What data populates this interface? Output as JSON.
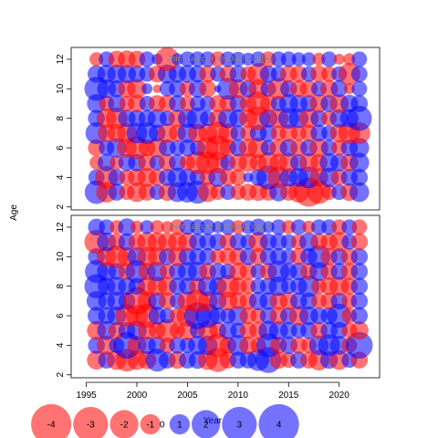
{
  "chart_data": [
    {
      "type": "scatter",
      "encoding": "bubble",
      "title": "Joint sample residuals log(N)",
      "xlabel": "Year",
      "ylabel": "Age",
      "xlim": [
        1993.5,
        2024
      ],
      "ylim": [
        1.8,
        12.8
      ],
      "xticks": [
        1995,
        2000,
        2005,
        2010,
        2015,
        2020
      ],
      "yticks": [
        2,
        4,
        6,
        8,
        10,
        12
      ],
      "colors": {
        "negative": "#ff0000",
        "positive": "#0000ff",
        "alpha": 0.55
      },
      "ages": [
        3,
        4,
        5,
        6,
        7,
        8,
        9,
        10,
        11,
        12
      ],
      "years": [
        1996,
        1997,
        1998,
        1999,
        2000,
        2001,
        2002,
        2003,
        2004,
        2005,
        2006,
        2007,
        2008,
        2009,
        2010,
        2011,
        2012,
        2013,
        2014,
        2015,
        2016,
        2017,
        2018,
        2019,
        2020,
        2021,
        2022
      ],
      "residuals_by_age": {
        "3": [
          2.3,
          -1.8,
          1.2,
          -1.0,
          -1.6,
          -1.2,
          1.0,
          -1.3,
          1.6,
          1.8,
          2.2,
          -1.6,
          -1.0,
          1.0,
          -1.0,
          -1.2,
          -1.3,
          -1.2,
          1.4,
          -1.2,
          -1.8,
          -3.5,
          -2.3,
          -1.0,
          1.0,
          -1.3,
          1.6
        ],
        "4": [
          1.1,
          -2.2,
          1.2,
          -1.0,
          -1.3,
          -1.5,
          -1.2,
          1.2,
          1.6,
          1.3,
          1.0,
          -1.0,
          1.5,
          -1.2,
          -1.1,
          0.4,
          1.2,
          2.4,
          -2.0,
          1.4,
          1.5,
          2.0,
          -1.4,
          1.6,
          -1.1,
          1.2,
          1.2
        ],
        "5": [
          -0.8,
          1.3,
          -0.8,
          1.2,
          1.3,
          -1.3,
          1.0,
          -1.2,
          1.2,
          -1.0,
          -2.2,
          -2.2,
          -2.0,
          1.0,
          -1.3,
          -1.5,
          -1.2,
          -1.8,
          -1.3,
          -1.6,
          1.2,
          -1.5,
          -1.2,
          1.5,
          1.3,
          -1.3,
          1.6
        ],
        "6": [
          -1.2,
          1.0,
          1.6,
          -1.6,
          -2.2,
          -1.2,
          -1.6,
          1.2,
          1.0,
          1.2,
          1.0,
          -2.0,
          -2.6,
          -1.2,
          1.2,
          -1.4,
          -1.8,
          1.0,
          -1.3,
          1.3,
          -1.2,
          1.2,
          -1.5,
          1.1,
          -1.0,
          1.2,
          1.6
        ],
        "7": [
          2.0,
          -1.3,
          -1.4,
          -1.6,
          1.8,
          2.0,
          1.2,
          -1.6,
          -1.2,
          1.6,
          -1.5,
          -1.5,
          -2.2,
          -1.6,
          1.0,
          -1.0,
          1.2,
          1.2,
          -1.0,
          -1.3,
          -1.0,
          -1.2,
          1.2,
          1.0,
          -1.4,
          -2.0,
          -2.0
        ],
        "8": [
          1.2,
          -1.6,
          -2.0,
          1.3,
          1.2,
          1.2,
          1.5,
          1.0,
          -1.3,
          1.5,
          2.0,
          1.0,
          -1.3,
          1.6,
          1.3,
          -1.4,
          -2.4,
          1.4,
          -1.6,
          1.8,
          1.6,
          -1.6,
          1.2,
          -1.0,
          1.4,
          1.4,
          2.6
        ],
        "9": [
          1.5,
          -1.0,
          1.3,
          -1.0,
          -1.3,
          1.0,
          -1.2,
          -1.2,
          1.2,
          -1.0,
          1.0,
          1.0,
          -1.2,
          -1.2,
          1.2,
          -1.2,
          -2.4,
          -1.2,
          1.0,
          1.5,
          1.3,
          1.2,
          -1.4,
          1.2,
          -1.5,
          1.3,
          1.2
        ],
        "10": [
          2.4,
          1.5,
          1.2,
          -1.3,
          -1.6,
          0.5,
          -0.3,
          1.0,
          1.2,
          -1.0,
          1.3,
          -1.2,
          0.2,
          2.0,
          -1.5,
          1.2,
          -1.6,
          1.0,
          -2.0,
          1.2,
          -1.2,
          -1.3,
          1.0,
          -1.3,
          1.2,
          -0.5,
          1.0
        ],
        "11": [
          1.3,
          1.4,
          1.5,
          1.4,
          1.2,
          1.0,
          -1.2,
          1.5,
          1.3,
          1.3,
          1.2,
          -1.2,
          1.0,
          -1.2,
          1.2,
          -1.0,
          -2.0,
          1.2,
          1.0,
          -1.2,
          -1.2,
          1.0,
          -1.2,
          -1.0,
          1.0,
          -2.0,
          1.1
        ],
        "12": [
          -0.8,
          1.0,
          -1.2,
          -1.3,
          -1.2,
          1.0,
          0.5,
          -2.4,
          0.6,
          1.0,
          1.0,
          1.0,
          -1.0,
          1.0,
          0.9,
          0.7,
          1.0,
          -1.0,
          1.0,
          1.0,
          0.8,
          0.8,
          -0.7,
          1.0,
          -0.5,
          -0.6,
          1.0
        ]
      }
    },
    {
      "type": "scatter",
      "encoding": "bubble",
      "title": "Joint sample residuals log(F)",
      "xlabel": "Year",
      "ylabel": "Age",
      "xlim": [
        1993.5,
        2024
      ],
      "ylim": [
        1.8,
        12.8
      ],
      "xticks": [
        1995,
        2000,
        2005,
        2010,
        2015,
        2020
      ],
      "yticks": [
        2,
        4,
        6,
        8,
        10,
        12
      ],
      "colors": {
        "negative": "#ff0000",
        "positive": "#0000ff",
        "alpha": 0.55
      },
      "ages": [
        3,
        4,
        5,
        6,
        7,
        8,
        9,
        10,
        11,
        12
      ],
      "years": [
        1996,
        1997,
        1998,
        1999,
        2000,
        2001,
        2002,
        2003,
        2004,
        2005,
        2006,
        2007,
        2008,
        2009,
        2010,
        2011,
        2012,
        2013,
        2014,
        2015,
        2016,
        2017,
        2018,
        2019,
        2020,
        2021,
        2022
      ],
      "residuals_by_age": {
        "3": [
          -1.5,
          1.2,
          -1.6,
          -2.2,
          -1.6,
          -1.4,
          2.2,
          1.2,
          -1.3,
          1.2,
          1.3,
          -1.6,
          -2.4,
          -1.2,
          1.2,
          1.2,
          2.0,
          2.8,
          -1.3,
          -1.0,
          1.2,
          -1.2,
          -1.8,
          1.3,
          -1.6,
          1.0,
          -1.2
        ],
        "4": [
          1.2,
          -1.6,
          1.0,
          3.0,
          -1.5,
          1.3,
          1.3,
          -1.0,
          1.2,
          1.0,
          1.5,
          1.6,
          -2.4,
          -1.2,
          1.8,
          -1.3,
          -1.0,
          2.4,
          -1.2,
          1.3,
          -1.2,
          -1.0,
          1.6,
          2.0,
          1.5,
          -1.0,
          3.0
        ],
        "5": [
          -1.5,
          1.5,
          -1.2,
          1.2,
          1.6,
          -1.4,
          -1.2,
          -2.2,
          -1.0,
          -1.6,
          1.0,
          -1.6,
          -1.2,
          1.3,
          1.0,
          -1.2,
          -1.3,
          1.6,
          1.5,
          1.2,
          1.0,
          1.2,
          -1.2,
          1.2,
          1.2,
          -1.0,
          -1.4
        ],
        "6": [
          1.3,
          1.2,
          1.5,
          -2.2,
          -2.0,
          -2.4,
          1.3,
          1.0,
          -1.0,
          -2.0,
          3.0,
          2.4,
          1.2,
          1.0,
          1.6,
          -1.2,
          -1.0,
          1.2,
          -1.3,
          1.2,
          -1.6,
          1.5,
          1.2,
          1.2,
          2.4,
          -1.0,
          1.2
        ],
        "7": [
          1.6,
          1.2,
          1.5,
          1.2,
          -3.2,
          -1.5,
          1.3,
          -1.2,
          1.0,
          -1.6,
          -2.2,
          -1.6,
          1.3,
          -1.5,
          -1.2,
          -1.2,
          1.4,
          1.3,
          -1.3,
          -1.3,
          1.2,
          1.2,
          -1.0,
          -1.2,
          1.2,
          -1.0,
          1.2
        ],
        "8": [
          2.4,
          1.3,
          1.5,
          1.3,
          1.2,
          -1.5,
          -1.6,
          -1.5,
          1.2,
          1.2,
          -1.2,
          1.6,
          1.3,
          -2.2,
          -1.3,
          -1.0,
          1.0,
          1.2,
          1.6,
          1.0,
          1.2,
          2.0,
          -1.0,
          -1.3,
          -1.6,
          -1.2,
          1.2
        ],
        "9": [
          2.2,
          1.5,
          1.2,
          -1.2,
          2.2,
          -1.3,
          1.6,
          -1.0,
          1.2,
          1.5,
          1.6,
          -1.2,
          1.2,
          1.0,
          -1.3,
          -1.2,
          1.0,
          -1.2,
          2.0,
          1.2,
          1.3,
          -1.2,
          1.5,
          -1.2,
          1.2,
          -1.2,
          1.2
        ],
        "10": [
          1.2,
          -1.6,
          -2.2,
          -1.5,
          1.5,
          -1.6,
          -1.5,
          1.2,
          -1.5,
          1.3,
          1.2,
          1.2,
          -1.0,
          -1.2,
          -1.3,
          1.2,
          -1.2,
          1.2,
          1.2,
          1.0,
          -1.2,
          1.2,
          2.2,
          -1.2,
          1.2,
          -1.2,
          1.2
        ],
        "11": [
          -2.4,
          1.5,
          -1.2,
          1.2,
          -1.2,
          -1.6,
          -1.5,
          -1.5,
          -1.5,
          -1.5,
          1.2,
          1.2,
          1.2,
          -1.2,
          1.2,
          1.0,
          -1.6,
          1.2,
          1.2,
          1.0,
          -1.0,
          1.5,
          -1.2,
          -1.2,
          -1.6,
          1.0,
          -1.2
        ],
        "12": [
          1.2,
          1.0,
          -0.8,
          1.3,
          -0.7,
          0.8,
          -0.8,
          -0.6,
          -1.0,
          1.0,
          1.0,
          1.0,
          0.6,
          1.0,
          -0.8,
          0.8,
          1.2,
          0.6,
          1.0,
          -0.8,
          1.0,
          -0.7,
          1.0,
          1.0,
          -1.0,
          1.0,
          -1.0
        ]
      }
    }
  ],
  "shared": {
    "xlabel": "Year",
    "ylabel": "Age"
  },
  "legend": {
    "items": [
      "-4",
      "-3",
      "-2",
      "-1",
      "0",
      "1",
      "2",
      "3",
      "4"
    ],
    "values": [
      -4,
      -3,
      -2,
      -1,
      0,
      1,
      2,
      3,
      4
    ]
  }
}
